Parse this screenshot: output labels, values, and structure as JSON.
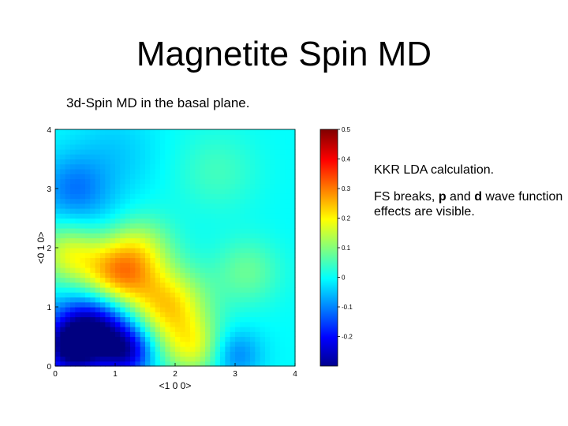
{
  "slide": {
    "title": "Magnetite Spin MD",
    "subtitle": "3d-Spin MD in the basal plane.",
    "notes": [
      "KKR LDA calculation.",
      {
        "before": "FS breaks, ",
        "p": "p",
        "mid": " and ",
        "d": "d",
        "after": " wave function effects are visible."
      }
    ]
  },
  "chart_data": {
    "type": "heatmap",
    "title": "",
    "xlabel": "<1 0 0>",
    "ylabel": "<0 1 0>",
    "xlim": [
      0,
      4
    ],
    "ylim": [
      0,
      4
    ],
    "x_ticks": [
      "0",
      "1",
      "2",
      "3",
      "4"
    ],
    "y_ticks": [
      "0",
      "1",
      "2",
      "3",
      "4"
    ],
    "colorbar": {
      "min": -0.3,
      "max": 0.5,
      "ticks": [
        "0.5",
        "0.4",
        "0.3",
        "0.2",
        "0.1",
        "0",
        "-0.1",
        "-0.2"
      ],
      "tick_values": [
        0.5,
        0.4,
        0.3,
        0.2,
        0.1,
        0,
        -0.1,
        -0.2
      ],
      "colormap": "jet"
    },
    "background_value": 0.0,
    "features": [
      {
        "type": "min",
        "x": 0.7,
        "y": 0.7,
        "v": -0.3,
        "s": 0.45
      },
      {
        "type": "min",
        "x": 0.25,
        "y": 0.3,
        "v": -0.25,
        "s": 0.35
      },
      {
        "type": "min",
        "x": 1.2,
        "y": 0.25,
        "v": -0.2,
        "s": 0.3
      },
      {
        "type": "min",
        "x": 0.3,
        "y": 3.0,
        "v": -0.1,
        "s": 0.4
      },
      {
        "type": "min",
        "x": 3.0,
        "y": 0.2,
        "v": -0.1,
        "s": 0.3
      },
      {
        "type": "max",
        "x": 1.0,
        "y": 1.5,
        "v": 0.28,
        "s": 0.45
      },
      {
        "type": "max",
        "x": 1.9,
        "y": 1.0,
        "v": 0.22,
        "s": 0.45
      },
      {
        "type": "max",
        "x": 0.2,
        "y": 1.9,
        "v": 0.15,
        "s": 0.35
      },
      {
        "type": "max",
        "x": 1.4,
        "y": 2.0,
        "v": 0.12,
        "s": 0.4
      },
      {
        "type": "max",
        "x": 2.3,
        "y": 0.3,
        "v": 0.15,
        "s": 0.35
      },
      {
        "type": "max",
        "x": 3.2,
        "y": 1.6,
        "v": 0.08,
        "s": 0.4
      },
      {
        "type": "max",
        "x": 2.7,
        "y": 3.3,
        "v": 0.05,
        "s": 0.5
      },
      {
        "type": "min",
        "x": 1.0,
        "y": 3.6,
        "v": -0.04,
        "s": 0.5
      },
      {
        "type": "min",
        "x": 0.9,
        "y": 2.4,
        "v": -0.03,
        "s": 0.4
      }
    ]
  }
}
